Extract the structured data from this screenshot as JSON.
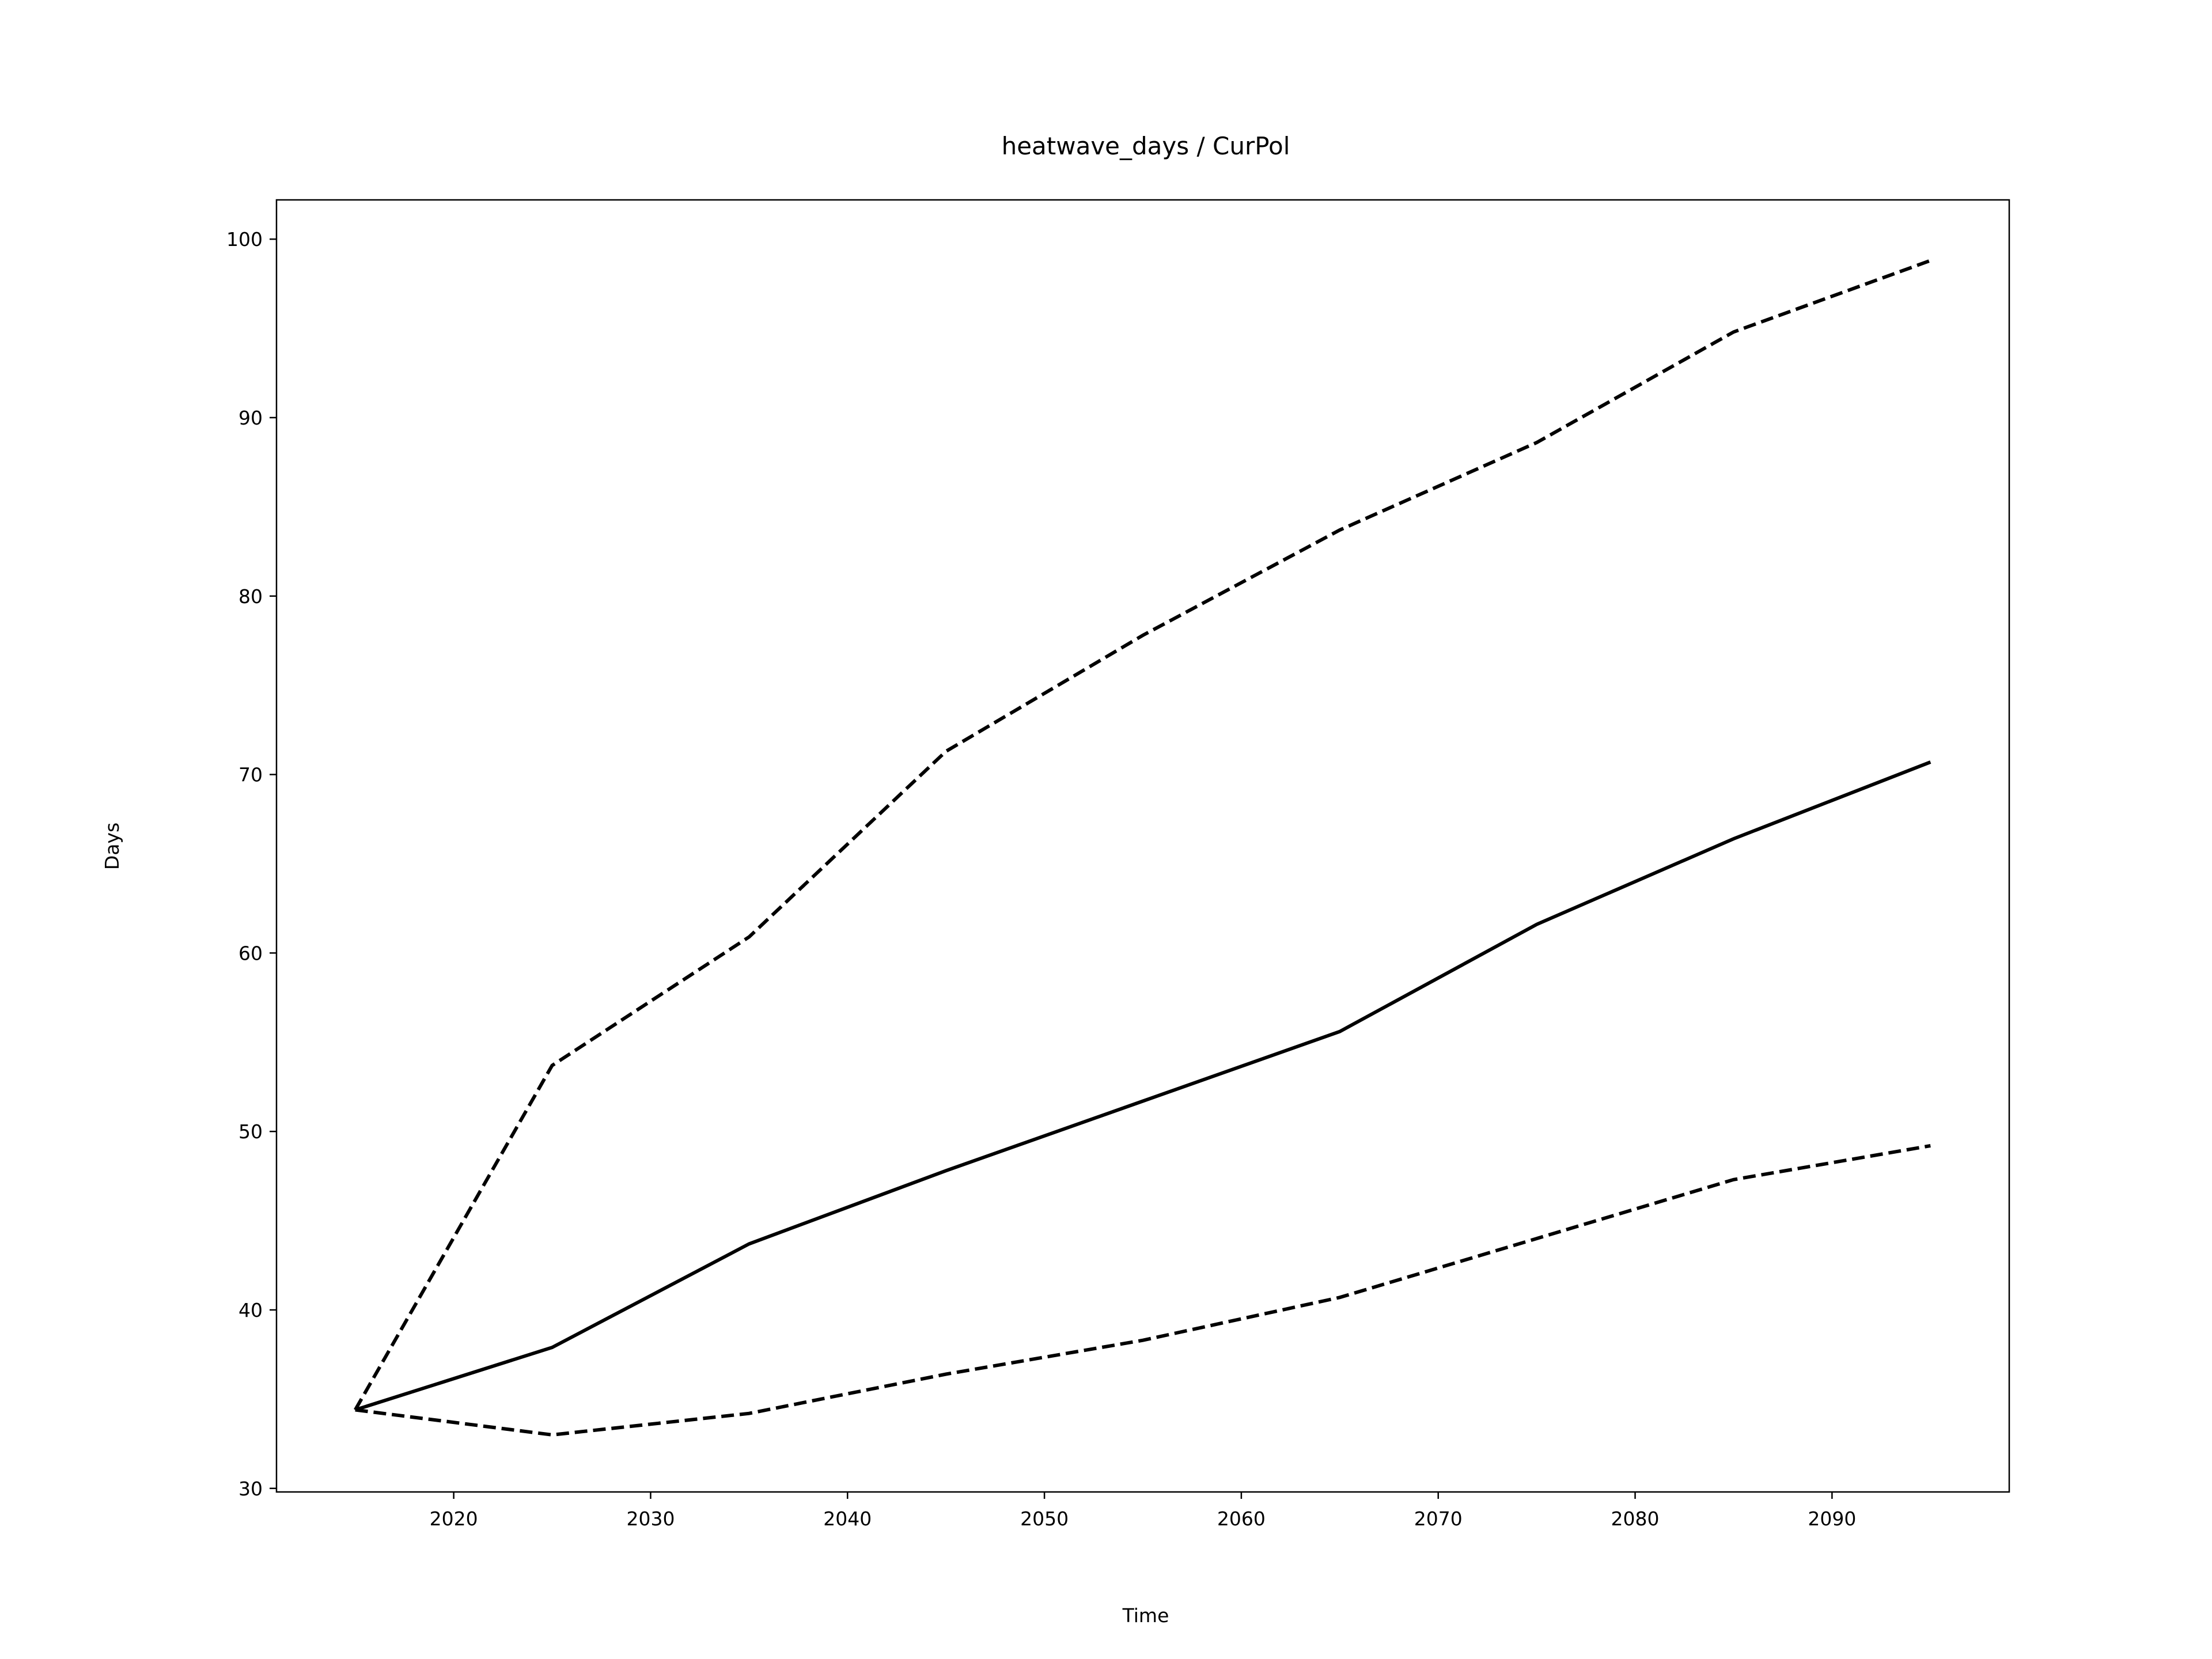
{
  "chart_data": {
    "type": "line",
    "title": "heatwave_days / CurPol",
    "xlabel": "Time",
    "ylabel": "Days",
    "xlim": [
      2011,
      2099
    ],
    "ylim": [
      29.8,
      102.2
    ],
    "xticks": [
      2020,
      2030,
      2040,
      2050,
      2060,
      2070,
      2080,
      2090
    ],
    "yticks": [
      30,
      40,
      50,
      60,
      70,
      80,
      90,
      100
    ],
    "grid": false,
    "x": [
      2015,
      2025,
      2035,
      2045,
      2055,
      2065,
      2075,
      2085,
      2095
    ],
    "series": [
      {
        "style": "solid",
        "color": "#000000",
        "values": [
          34.4,
          37.9,
          43.7,
          47.8,
          51.7,
          55.6,
          61.6,
          66.4,
          70.7
        ]
      },
      {
        "style": "dashed",
        "color": "#000000",
        "values": [
          34.4,
          53.7,
          60.9,
          71.3,
          77.8,
          83.7,
          88.6,
          94.8,
          98.8
        ]
      },
      {
        "style": "dashed",
        "color": "#000000",
        "values": [
          34.4,
          33.0,
          34.2,
          36.4,
          38.3,
          40.7,
          44.0,
          47.3,
          49.2
        ]
      }
    ]
  }
}
